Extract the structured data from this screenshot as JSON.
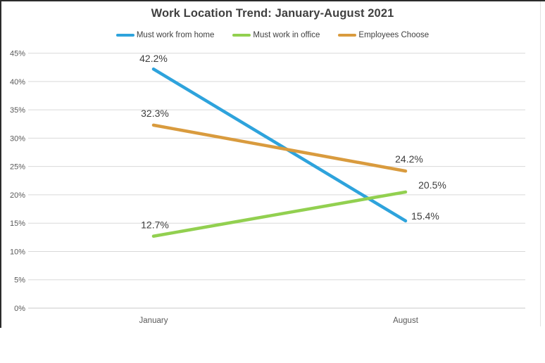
{
  "chart_data": {
    "type": "line",
    "title": "Work Location Trend: January-August 2021",
    "categories": [
      "January",
      "August"
    ],
    "series": [
      {
        "name": "Must work from home",
        "color": "#2EA3DC",
        "values": [
          42.2,
          15.4
        ],
        "point_labels": [
          "42.2%",
          "15.4%"
        ]
      },
      {
        "name": "Must work in office",
        "color": "#92D050",
        "values": [
          12.7,
          20.5
        ],
        "point_labels": [
          "12.7%",
          "20.5%"
        ]
      },
      {
        "name": "Employees Choose",
        "color": "#D99B3E",
        "values": [
          32.3,
          24.2
        ],
        "point_labels": [
          "32.3%",
          "24.2%"
        ]
      }
    ],
    "ylim": [
      0,
      45
    ],
    "ytick_step": 5,
    "ytick_labels": [
      "0%",
      "5%",
      "10%",
      "15%",
      "20%",
      "25%",
      "30%",
      "35%",
      "40%",
      "45%"
    ],
    "xlabel": "",
    "ylabel": "",
    "grid": true,
    "legend_position": "top-center"
  },
  "colors": {
    "gridline": "#D9D9D9",
    "axis_line": "#C9C9C9",
    "tick_text": "#595959",
    "category_text": "#595959",
    "data_label_text": "#3D3D3D",
    "title_text": "#404040"
  }
}
